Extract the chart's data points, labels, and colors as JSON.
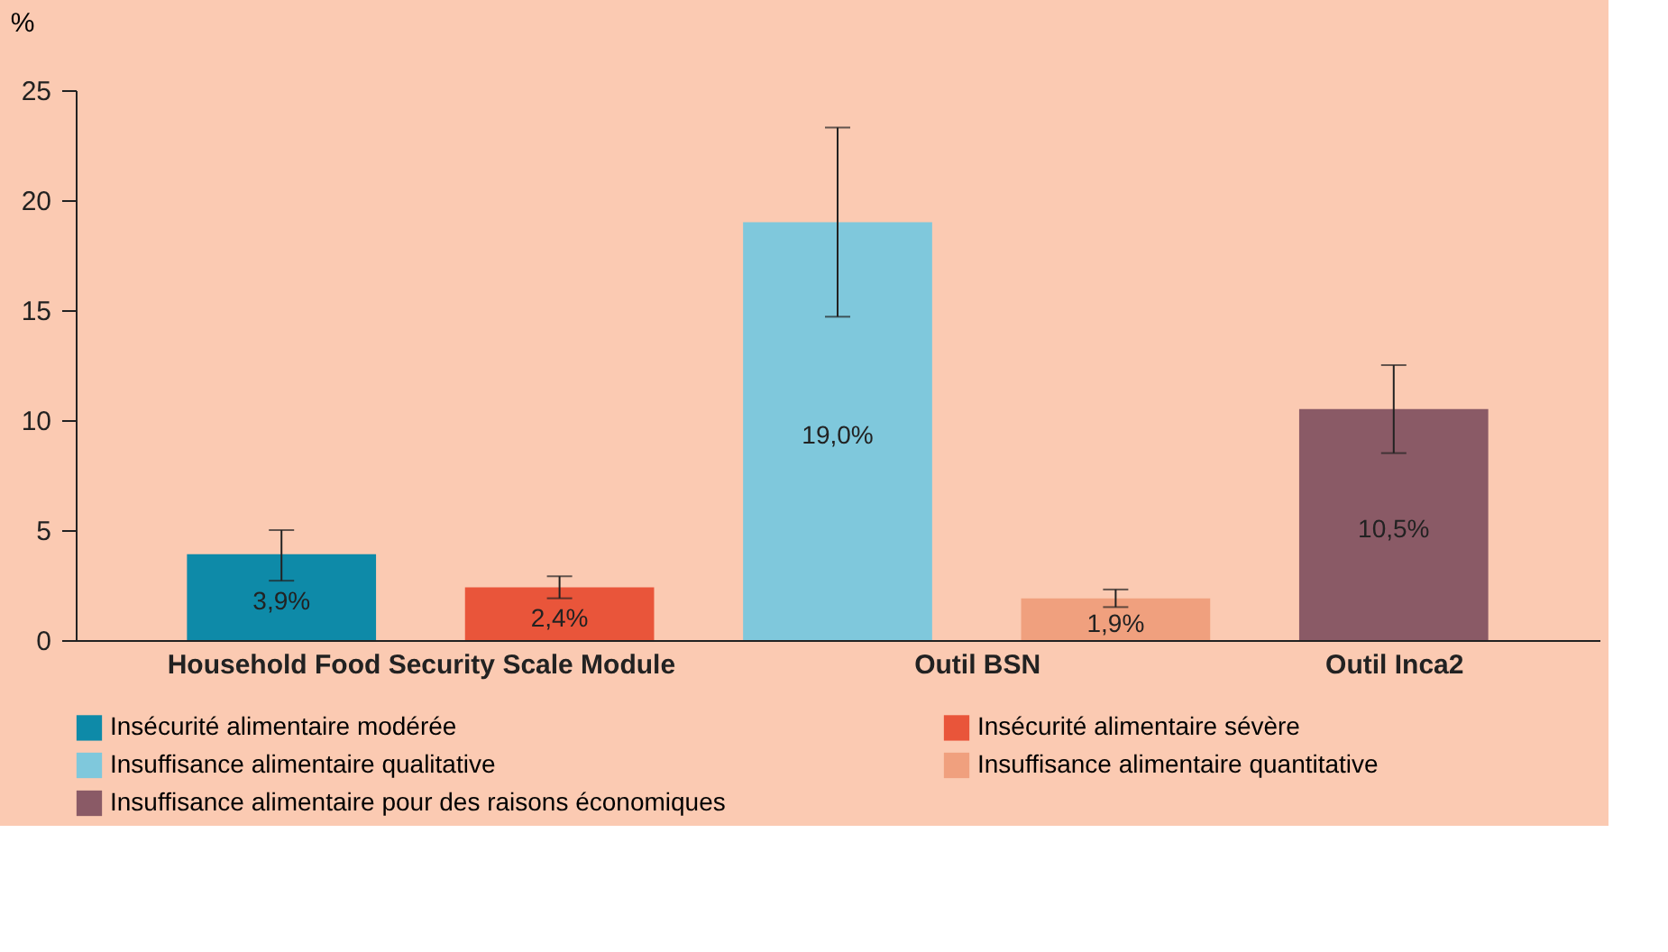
{
  "chart_data": {
    "type": "bar",
    "ylabel": "%",
    "categories": [
      "Household Food Security Scale Module",
      "Outil BSN",
      "Outil Inca2"
    ],
    "series": [
      {
        "name": "Insécurité alimentaire modérée",
        "color": "#0e8aa8",
        "values": [
          3.9,
          null,
          null
        ],
        "errors": [
          [
            2.7,
            5.0
          ],
          null,
          null
        ],
        "value_labels": [
          "3,9%",
          null,
          null
        ]
      },
      {
        "name": "Insécurité alimentaire sévère",
        "color": "#e9553a",
        "values": [
          2.4,
          null,
          null
        ],
        "errors": [
          [
            1.9,
            2.9
          ],
          null,
          null
        ],
        "value_labels": [
          "2,4%",
          null,
          null
        ]
      },
      {
        "name": "Insuffisance alimentaire qualitative",
        "color": "#7fc8dc",
        "values": [
          null,
          19.0,
          null
        ],
        "errors": [
          null,
          [
            14.7,
            23.3
          ],
          null
        ],
        "value_labels": [
          null,
          "19,0%",
          null
        ]
      },
      {
        "name": "Insuffisance alimentaire quantitative",
        "color": "#f0a07e",
        "values": [
          null,
          1.9,
          null
        ],
        "errors": [
          null,
          [
            1.5,
            2.3
          ],
          null
        ],
        "value_labels": [
          null,
          "1,9%",
          null
        ]
      },
      {
        "name": "Insuffisance alimentaire pour des raisons économiques",
        "color": "#8a5a66",
        "values": [
          null,
          null,
          10.5
        ],
        "errors": [
          null,
          null,
          [
            8.5,
            12.5
          ]
        ],
        "value_labels": [
          null,
          null,
          "10,5%"
        ]
      }
    ],
    "ylim": [
      0,
      25
    ],
    "yticks": [
      0,
      5,
      10,
      15,
      20,
      25
    ],
    "grid": false,
    "legend": "bottom"
  }
}
